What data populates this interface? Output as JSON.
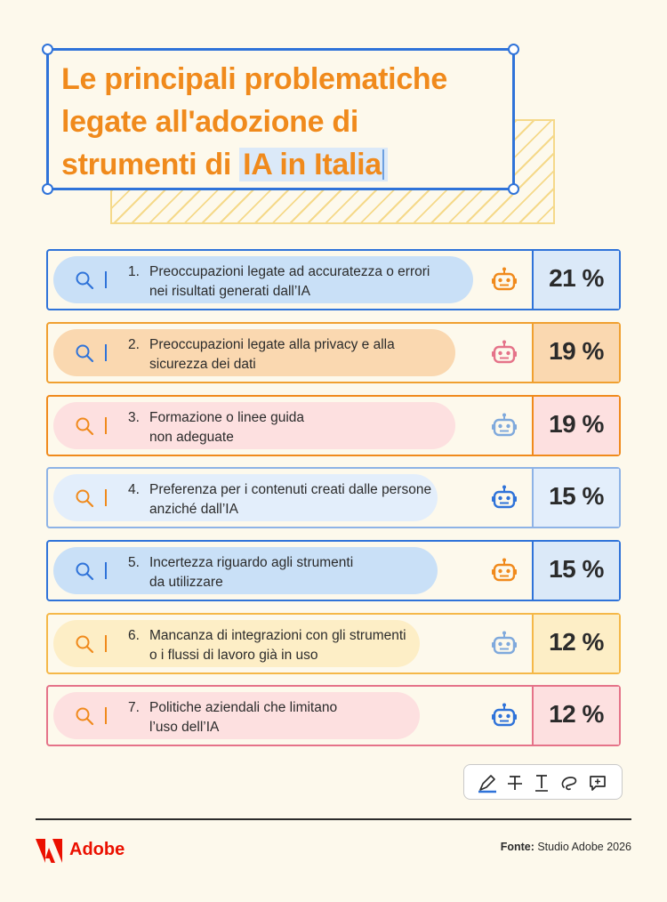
{
  "title": {
    "line1": "Le principali problematiche",
    "line2": "legate all'adozione di",
    "line3_prefix": "strumenti di ",
    "line3_highlight": "IA in Italia"
  },
  "rows": [
    {
      "num": "1.",
      "line1": "Preoccupazioni legate ad accuratezza o errori",
      "line2": "nei risultati generati dall’IA",
      "pct": "21 %",
      "value": 21
    },
    {
      "num": "2.",
      "line1": "Preoccupazioni legate alla privacy e alla",
      "line2": "sicurezza dei dati",
      "pct": "19 %",
      "value": 19
    },
    {
      "num": "3.",
      "line1": "Formazione o linee guida",
      "line2": "non adeguate",
      "pct": "19 %",
      "value": 19
    },
    {
      "num": "4.",
      "line1": "Preferenza per i contenuti creati dalle persone",
      "line2": "anziché dall’IA",
      "pct": "15 %",
      "value": 15
    },
    {
      "num": "5.",
      "line1": "Incertezza riguardo agli strumenti",
      "line2": "da utilizzare",
      "pct": "15 %",
      "value": 15
    },
    {
      "num": "6.",
      "line1": "Mancanza di integrazioni con gli strumenti",
      "line2": "o i flussi di lavoro già in uso",
      "pct": "12 %",
      "value": 12
    },
    {
      "num": "7.",
      "line1": "Politiche aziendali che limitano",
      "line2": "l’uso dell’IA",
      "pct": "12 %",
      "value": 12
    }
  ],
  "toolbar": {
    "icons": [
      "highlighter-icon",
      "strikethrough-icon",
      "text-cursor-icon",
      "lasso-icon",
      "add-comment-icon"
    ]
  },
  "footer": {
    "brand": "Adobe",
    "source_label": "Fonte:",
    "source_value": " Studio Adobe 2026"
  },
  "colors": {
    "blue": "#2f73d9",
    "orange": "#f08a1c",
    "pink": "#e57389",
    "yellow": "#f5d98a",
    "adobe_red": "#eb1000"
  }
}
